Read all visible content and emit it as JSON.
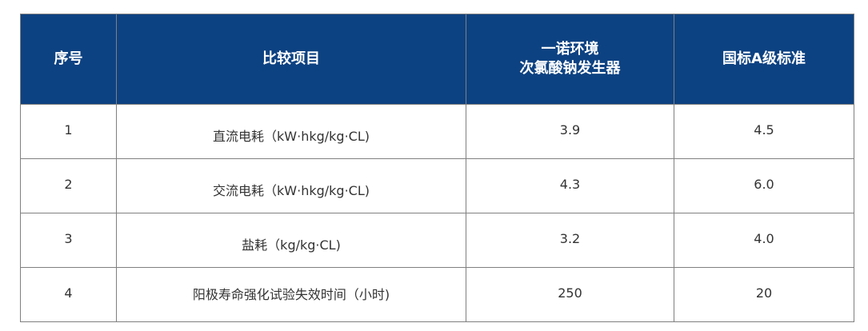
{
  "header_color": "#0d4282",
  "headers": [
    "序号",
    "比较项目",
    "一诺环境",
    "次氯酸钠发生器",
    "国标A级标准"
  ],
  "rows": [
    {
      "no": "1",
      "item": "直流电耗（kW·hkg/kg·CL)",
      "product": "3.9",
      "standard": "4.5"
    },
    {
      "no": "2",
      "item": "交流电耗（kW·hkg/kg·CL)",
      "product": "4.3",
      "standard": "6.0"
    },
    {
      "no": "3",
      "item": "盐耗（kg/kg·CL)",
      "product": "3.2",
      "standard": "4.0"
    },
    {
      "no": "4",
      "item": "阳极寿命强化试验失效时间（小时)",
      "product": "250",
      "standard": "20"
    }
  ]
}
